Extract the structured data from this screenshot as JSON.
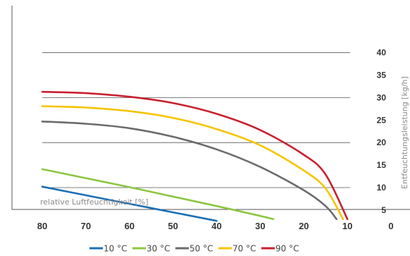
{
  "chart_data": {
    "type": "line",
    "xlabel": "relative Luftfeuchtigkeit [%]",
    "ylabel": "Entfeuchtungsleistung [kg/h]",
    "xlim": [
      80,
      0
    ],
    "ylim": [
      0,
      45
    ],
    "x_ticks": [
      "80",
      "70",
      "60",
      "50",
      "40",
      "30",
      "20",
      "10",
      "0"
    ],
    "x_tick_values": [
      80,
      70,
      60,
      50,
      40,
      30,
      20,
      10,
      0
    ],
    "y_ticks": [
      "5",
      "10",
      "15",
      "20",
      "25",
      "30",
      "35",
      "40"
    ],
    "y_tick_values": [
      5,
      10,
      15,
      20,
      25,
      30,
      35,
      40
    ],
    "grid": "horizontal",
    "legend_position": "bottom",
    "series": [
      {
        "name": "10 °C",
        "color": "#1a6fb5",
        "x": [
          80,
          70,
          60,
          50,
          40
        ],
        "y": [
          10.2,
          8.3,
          6.4,
          4.5,
          2.6
        ]
      },
      {
        "name": "30 °C",
        "color": "#8cc63f",
        "x": [
          80,
          70,
          60,
          50,
          40,
          30,
          27
        ],
        "y": [
          14.1,
          12.1,
          10.1,
          8.0,
          5.9,
          3.7,
          3.0
        ]
      },
      {
        "name": "50 °C",
        "color": "#6b6b6b",
        "x": [
          80,
          70,
          60,
          50,
          40,
          30,
          20,
          15,
          12.5
        ],
        "y": [
          24.7,
          24.2,
          23.2,
          21.3,
          18.5,
          14.6,
          9.4,
          5.9,
          3.0
        ]
      },
      {
        "name": "70 °C",
        "color": "#f7c400",
        "x": [
          80,
          70,
          60,
          50,
          40,
          30,
          20,
          15,
          11
        ],
        "y": [
          28.1,
          27.8,
          27.0,
          25.5,
          23.0,
          19.4,
          13.8,
          9.8,
          3.0
        ]
      },
      {
        "name": "90 °C",
        "color": "#c8202f",
        "x": [
          80,
          70,
          60,
          50,
          40,
          30,
          20,
          15,
          10
        ],
        "y": [
          31.3,
          31.0,
          30.2,
          28.8,
          26.4,
          22.8,
          17.3,
          12.9,
          3.0
        ]
      }
    ]
  }
}
